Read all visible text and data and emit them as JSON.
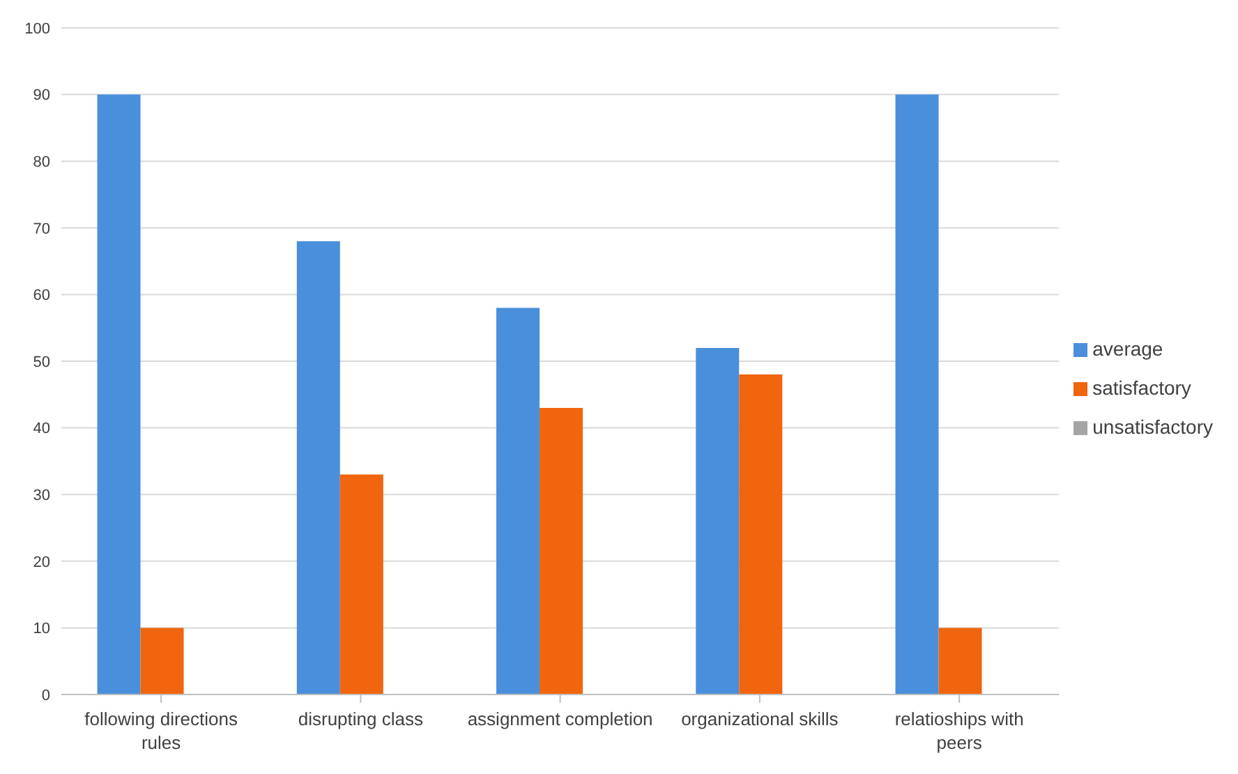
{
  "chart_data": {
    "type": "bar",
    "categories": [
      "following directions rules",
      "disrupting class",
      "assignment completion",
      "organizational skills",
      "relatioships with peers"
    ],
    "series": [
      {
        "name": "average",
        "color": "#4a8fdc",
        "values": [
          90,
          68,
          58,
          52,
          90
        ]
      },
      {
        "name": "satisfactory",
        "color": "#f0650e",
        "values": [
          10,
          33,
          43,
          48,
          10
        ]
      },
      {
        "name": "unsatisfactory",
        "color": "#a5a5a5",
        "values": [
          0,
          0,
          0,
          0,
          0
        ]
      }
    ],
    "ylim": [
      0,
      100
    ],
    "yticks": [
      0,
      10,
      20,
      30,
      40,
      50,
      60,
      70,
      80,
      90,
      100
    ],
    "grid": "y",
    "legend": "right"
  }
}
